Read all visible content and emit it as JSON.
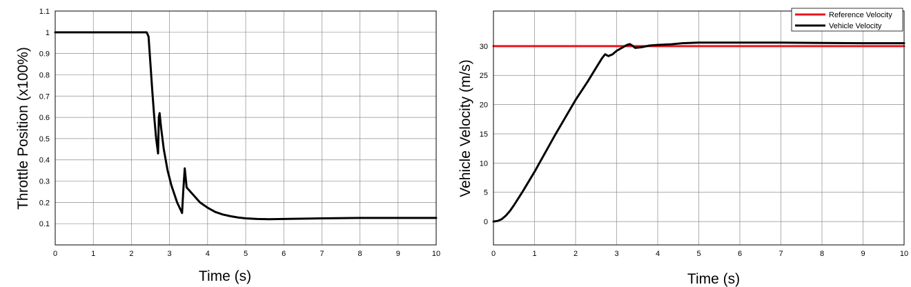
{
  "chart_data": [
    {
      "type": "line",
      "title": "",
      "xlabel": "Time (s)",
      "ylabel": "Throttle Position (x100%)",
      "xlim": [
        0,
        10
      ],
      "ylim": [
        0.0,
        1.1
      ],
      "grid": true,
      "x_ticks": [
        0,
        1,
        2,
        3,
        4,
        5,
        6,
        7,
        8,
        9,
        10
      ],
      "y_ticks": [
        0.1,
        0.2,
        0.3,
        0.4,
        0.5,
        0.6,
        0.7,
        0.8,
        0.9,
        1,
        1.1
      ],
      "series": [
        {
          "color": "#000000",
          "points": [
            [
              0,
              1
            ],
            [
              2.4,
              1
            ],
            [
              2.45,
              0.98
            ],
            [
              2.5,
              0.85
            ],
            [
              2.55,
              0.72
            ],
            [
              2.6,
              0.6
            ],
            [
              2.65,
              0.5
            ],
            [
              2.7,
              0.43
            ],
            [
              2.72,
              0.6
            ],
            [
              2.74,
              0.62
            ],
            [
              2.78,
              0.55
            ],
            [
              2.85,
              0.45
            ],
            [
              2.95,
              0.35
            ],
            [
              3.05,
              0.28
            ],
            [
              3.2,
              0.2
            ],
            [
              3.33,
              0.15
            ],
            [
              3.36,
              0.25
            ],
            [
              3.4,
              0.36
            ],
            [
              3.45,
              0.27
            ],
            [
              3.6,
              0.24
            ],
            [
              3.8,
              0.2
            ],
            [
              4.0,
              0.175
            ],
            [
              4.2,
              0.155
            ],
            [
              4.4,
              0.143
            ],
            [
              4.6,
              0.135
            ],
            [
              4.8,
              0.129
            ],
            [
              5.0,
              0.125
            ],
            [
              5.3,
              0.122
            ],
            [
              5.6,
              0.121
            ],
            [
              6.0,
              0.122
            ],
            [
              7.0,
              0.125
            ],
            [
              8.0,
              0.127
            ],
            [
              9.0,
              0.127
            ],
            [
              10,
              0.127
            ]
          ]
        }
      ]
    },
    {
      "type": "line",
      "title": "",
      "xlabel": "Time (s)",
      "ylabel": "Vehicle Velocity (m/s)",
      "xlim": [
        0,
        10
      ],
      "ylim": [
        -4,
        36
      ],
      "grid": true,
      "legend_position": "top-right",
      "x_ticks": [
        0,
        1,
        2,
        3,
        4,
        5,
        6,
        7,
        8,
        9,
        10
      ],
      "y_ticks": [
        0,
        5,
        10,
        15,
        20,
        25,
        30
      ],
      "series": [
        {
          "name": "Reference Velocity",
          "color": "#e8141b",
          "points": [
            [
              0,
              30
            ],
            [
              10,
              30
            ]
          ]
        },
        {
          "name": "Vehicle Velocity",
          "color": "#000000",
          "points": [
            [
              0,
              0
            ],
            [
              0.1,
              0.1
            ],
            [
              0.2,
              0.4
            ],
            [
              0.3,
              1
            ],
            [
              0.4,
              1.8
            ],
            [
              0.5,
              2.8
            ],
            [
              0.7,
              5
            ],
            [
              1.0,
              8.5
            ],
            [
              1.5,
              14.8
            ],
            [
              2.0,
              20.8
            ],
            [
              2.3,
              24
            ],
            [
              2.5,
              26.3
            ],
            [
              2.65,
              28
            ],
            [
              2.72,
              28.6
            ],
            [
              2.8,
              28.3
            ],
            [
              2.9,
              28.6
            ],
            [
              3.0,
              29.2
            ],
            [
              3.15,
              29.8
            ],
            [
              3.25,
              30.2
            ],
            [
              3.32,
              30.35
            ],
            [
              3.38,
              30.1
            ],
            [
              3.45,
              29.7
            ],
            [
              3.6,
              29.8
            ],
            [
              3.8,
              30.1
            ],
            [
              4.0,
              30.2
            ],
            [
              4.3,
              30.3
            ],
            [
              4.6,
              30.5
            ],
            [
              5.0,
              30.6
            ],
            [
              5.5,
              30.6
            ],
            [
              6.0,
              30.6
            ],
            [
              7.0,
              30.6
            ],
            [
              8.0,
              30.55
            ],
            [
              9.0,
              30.5
            ],
            [
              10,
              30.5
            ]
          ]
        }
      ]
    }
  ]
}
